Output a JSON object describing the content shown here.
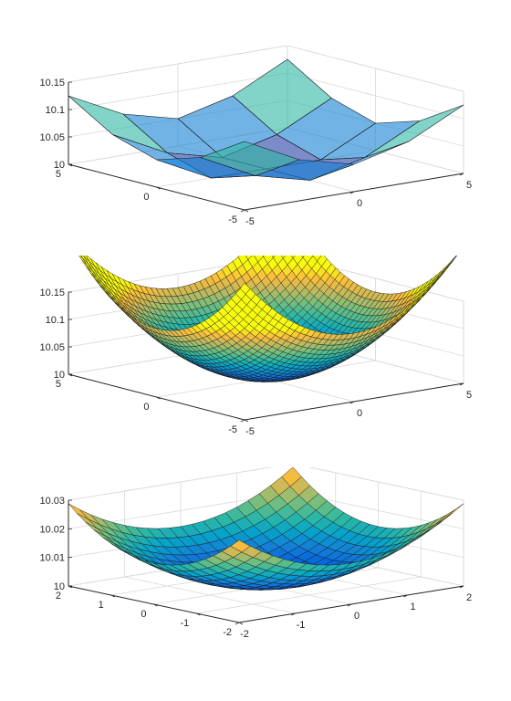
{
  "chart_data": [
    {
      "type": "surface",
      "title": "",
      "xlabel": "",
      "ylabel": "",
      "zlabel": "",
      "xlim": [
        -5,
        5
      ],
      "ylim": [
        -5,
        5
      ],
      "zlim": [
        10,
        10.15
      ],
      "x_ticks": [
        "-5",
        "0",
        "5"
      ],
      "y_ticks": [
        "-5",
        "0",
        "5"
      ],
      "z_ticks": [
        "10",
        "10.05",
        "10.1",
        "10.15"
      ],
      "grid": true,
      "colormap": "parula-transparent",
      "x": [
        -5,
        -2.5,
        0,
        2.5,
        5
      ],
      "y": [
        -5,
        -2.5,
        0,
        2.5,
        5
      ],
      "z": [
        [
          10.125,
          10.075,
          10.05,
          10.075,
          10.125
        ],
        [
          10.075,
          10.025,
          10.0,
          10.025,
          10.075
        ],
        [
          10.05,
          10.0,
          10.0,
          10.0,
          10.05
        ],
        [
          10.075,
          10.025,
          10.0,
          10.025,
          10.075
        ],
        [
          10.125,
          10.075,
          10.05,
          10.075,
          10.125
        ]
      ]
    },
    {
      "type": "surface",
      "title": "",
      "xlabel": "",
      "ylabel": "",
      "zlabel": "",
      "xlim": [
        -5,
        5
      ],
      "ylim": [
        -5,
        5
      ],
      "zlim": [
        10,
        10.15
      ],
      "x_ticks": [
        "-5",
        "0",
        "5"
      ],
      "y_ticks": [
        "-5",
        "0",
        "5"
      ],
      "z_ticks": [
        "10",
        "10.05",
        "10.1",
        "10.15"
      ],
      "grid": true,
      "colormap": "parula",
      "function": "z = 10 + 0.005*(x^2 + y^2)",
      "samples": 41
    },
    {
      "type": "surface",
      "title": "",
      "xlabel": "",
      "ylabel": "",
      "zlabel": "",
      "xlim": [
        -2,
        2
      ],
      "ylim": [
        -2,
        2
      ],
      "zlim": [
        10,
        10.03
      ],
      "x_ticks": [
        "-2",
        "-1",
        "0",
        "1",
        "2"
      ],
      "y_ticks": [
        "-2",
        "-1",
        "0",
        "1",
        "2"
      ],
      "z_ticks": [
        "10",
        "10.01",
        "10.02",
        "10.03"
      ],
      "grid": true,
      "colormap": "parula",
      "function": "z = 10 + 0.0036*(x^2 + y^2)",
      "samples": 21
    }
  ]
}
